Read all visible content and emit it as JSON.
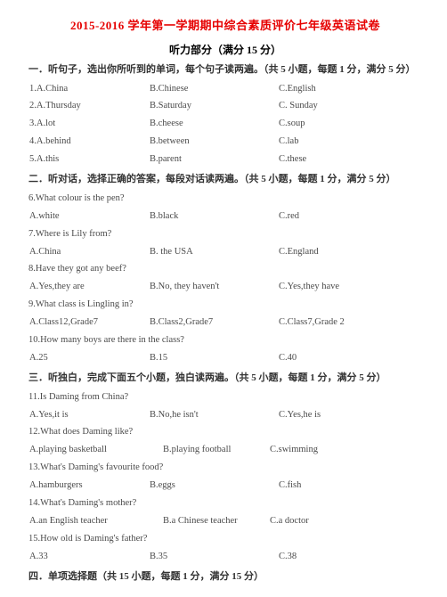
{
  "title": "2015-2016 学年第一学期期中综合素质评价七年级英语试卷",
  "subtitle": "听力部分（满分 15 分）",
  "s1": "一．听句子，选出你所听到的单词，每个句子读两遍。（共 5 小题，每题 1 分，满分 5 分）",
  "q1": {
    "n": "1.A.China",
    "b": "B.Chinese",
    "c": "C.English"
  },
  "q2": {
    "n": "2.A.Thursday",
    "b": "B.Saturday",
    "c": "C. Sunday"
  },
  "q3": {
    "n": "3.A.lot",
    "b": "B.cheese",
    "c": "C.soup"
  },
  "q4": {
    "n": "4.A.behind",
    "b": "B.between",
    "c": "C.lab"
  },
  "q5": {
    "n": "5.A.this",
    "b": "B.parent",
    "c": "C.these"
  },
  "s2": "二．听对话，选择正确的答案，每段对话读两遍。（共 5 小题，每题 1 分，满分 5 分）",
  "q6": "6.What colour is the pen?",
  "q6o": {
    "a": "A.white",
    "b": "B.black",
    "c": "C.red"
  },
  "q7": "7.Where is Lily from?",
  "q7o": {
    "a": "A.China",
    "b": "B. the USA",
    "c": "C.England"
  },
  "q8": "8.Have they got any beef?",
  "q8o": {
    "a": "A.Yes,they are",
    "b": "B.No, they haven't",
    "c": "C.Yes,they have"
  },
  "q9": "9.What class is Lingling in?",
  "q9o": {
    "a": "A.Class12,Grade7",
    "b": "B.Class2,Grade7",
    "c": "C.Class7,Grade 2"
  },
  "q10": "10.How many boys are there in the class?",
  "q10o": {
    "a": "A.25",
    "b": "B.15",
    "c": "C.40"
  },
  "s3": "三．听独白，完成下面五个小题，独白读两遍。（共 5 小题，每题 1 分，满分 5 分）",
  "q11": "11.Is Daming from China?",
  "q11o": {
    "a": "A.Yes,it is",
    "b": "B.No,he isn't",
    "c": "C.Yes,he is"
  },
  "q12": "12.What does Daming like?",
  "q12o": {
    "a": "A.playing basketball",
    "b": "B.playing football",
    "c": "C.swimming"
  },
  "q13": "13.What's Daming's favourite food?",
  "q13o": {
    "a": "A.hamburgers",
    "b": "B.eggs",
    "c": "C.fish"
  },
  "q14": "14.What's Daming's mother?",
  "q14o": {
    "a": "A.an English teacher",
    "b": "B.a Chinese teacher",
    "c": "C.a doctor"
  },
  "q15": "15.How old is Daming's father?",
  "q15o": {
    "a": "A.33",
    "b": "B.35",
    "c": "C.38"
  },
  "s4": "四．单项选择题（共 15 小题，每题 1 分，满分 15 分）"
}
